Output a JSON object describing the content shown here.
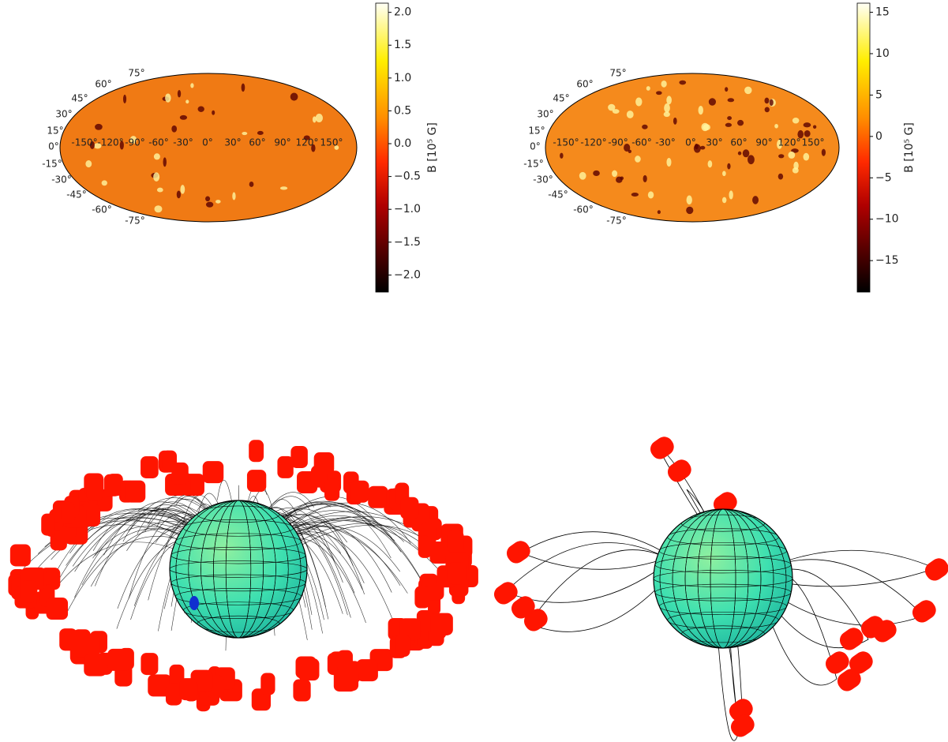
{
  "chart_data": [
    {
      "type": "mollweide",
      "lat_labels": [
        "75°",
        "60°",
        "45°",
        "30°",
        "15°",
        "0°",
        "-15°",
        "-30°",
        "-45°",
        "-60°",
        "-75°"
      ],
      "lon_labels": [
        "-150°",
        "-120°",
        "-90°",
        "-60°",
        "-30°",
        "0°",
        "30°",
        "60°",
        "90°",
        "120°",
        "150°"
      ],
      "colorbar_label": "B [10⁵ G]",
      "clim": [
        -2.26,
        2.14
      ],
      "cticks": [
        {
          "value": 2.0,
          "label": "2.0"
        },
        1.5,
        {
          "value": 1.0,
          "label": "1.0"
        },
        0.5,
        {
          "value": 0.0,
          "label": "0.0"
        },
        {
          "value": -0.5,
          "label": "−0.5"
        },
        {
          "value": -1.0,
          "label": "−1.0"
        },
        {
          "value": -1.5,
          "label": "−1.5"
        },
        {
          "value": -2.0,
          "label": "−2.0"
        }
      ]
    },
    {
      "type": "mollweide",
      "lat_labels": [
        "75°",
        "60°",
        "45°",
        "30°",
        "15°",
        "0°",
        "-15°",
        "-30°",
        "-45°",
        "-60°",
        "-75°"
      ],
      "lon_labels": [
        "-150°",
        "-120°",
        "-90°",
        "-60°",
        "-30°",
        "0°",
        "30°",
        "60°",
        "90°",
        "120°",
        "150°"
      ],
      "colorbar_label": "B [10⁵ G]",
      "clim": [
        -18.8,
        16.1
      ],
      "cticks": [
        15,
        10,
        5,
        0,
        {
          "value": -5,
          "label": "−5"
        },
        {
          "value": -10,
          "label": "−10"
        },
        {
          "value": -15,
          "label": "−15"
        }
      ]
    }
  ]
}
